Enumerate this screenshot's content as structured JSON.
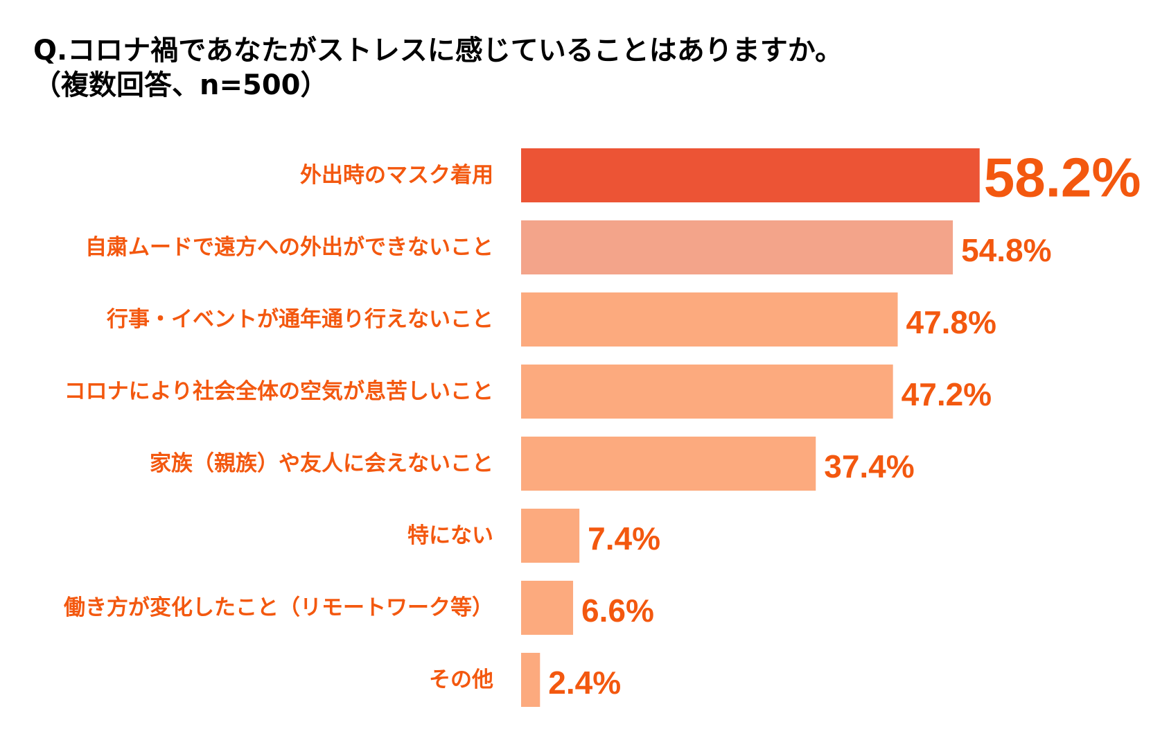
{
  "title_line1": "Q.コロナ禍であなたがストレスに感じていることはありますか。",
  "title_line2": "（複数回答、n=500）",
  "colors": {
    "highlight_bar": "#EC5435",
    "second_bar": "#F3A48A",
    "other_bar": "#FCAA7E",
    "text": "#F3580F",
    "title": "#000000"
  },
  "chart_data": {
    "type": "bar",
    "orientation": "horizontal",
    "title": "Q.コロナ禍であなたがストレスに感じていることはありますか。（複数回答、n=500）",
    "xlabel": "",
    "ylabel": "",
    "xlim": [
      0,
      60
    ],
    "grid": false,
    "categories": [
      "外出時のマスク着用",
      "自粛ムードで遠方への外出ができないこと",
      "行事・イベントが通年通り行えないこと",
      "コロナにより社会全体の空気が息苦しいこと",
      "家族（親族）や友人に会えないこと",
      "特にない",
      "働き方が変化したこと（リモートワーク等）",
      "その他"
    ],
    "values": [
      58.2,
      54.8,
      47.8,
      47.2,
      37.4,
      7.4,
      6.6,
      2.4
    ],
    "value_labels": [
      "58.2%",
      "54.8%",
      "47.8%",
      "47.2%",
      "37.4%",
      "7.4%",
      "6.6%",
      "2.4%"
    ]
  }
}
